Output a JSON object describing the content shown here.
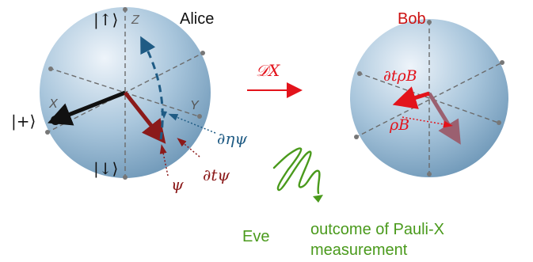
{
  "alice": {
    "name": "Alice",
    "ket_up": "|↑⟩",
    "ket_down": "|↓⟩",
    "ket_plus": "|+⟩",
    "axis_z": "Z",
    "axis_x": "X",
    "axis_y": "Y",
    "psi": "ψ",
    "d_eta_psi": "∂ηψ",
    "d_t_psi": "∂tψ"
  },
  "bob": {
    "name": "Bob",
    "d_t_rho": "∂tρB",
    "rho": "ρB"
  },
  "channel_label": "𝒟X",
  "eve": {
    "name": "Eve",
    "outcome_line1": "outcome of Pauli-X",
    "outcome_line2": "measurement"
  },
  "colors": {
    "sphere_light": "#dde9f3",
    "sphere_dark": "#7fa6c4",
    "red": "#e3131b",
    "dark_red": "#8b1a1a",
    "maroon_text": "#8b1a1a",
    "blue": "#1f5b84",
    "green": "#4a9a1c",
    "axis": "#777777",
    "rose_arrow": "#9b6070"
  }
}
